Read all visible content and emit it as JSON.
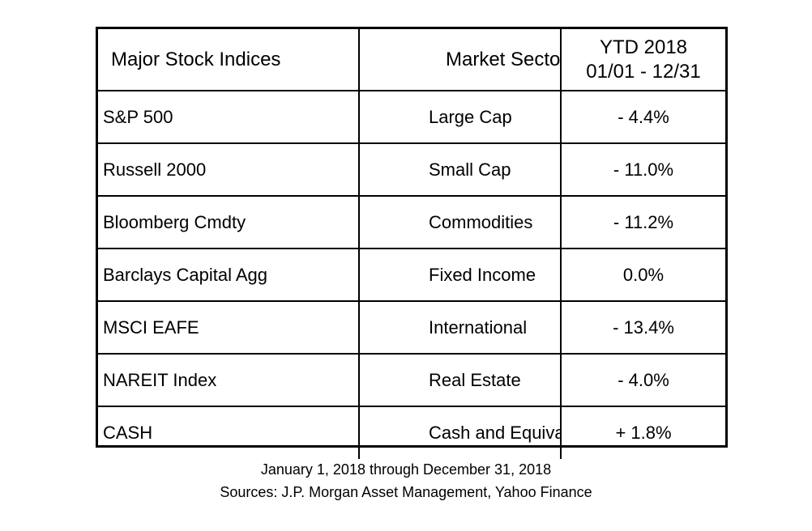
{
  "table": {
    "headers": {
      "index": "Major Stock Indices",
      "sector": "Market Sector",
      "ytd_line1": "YTD 2018",
      "ytd_line2": "01/01 - 12/31"
    },
    "rows": [
      {
        "index": "S&P 500",
        "sector": "Large Cap",
        "ytd": "- 4.4%"
      },
      {
        "index": "Russell 2000",
        "sector": "Small Cap",
        "ytd": "- 11.0%"
      },
      {
        "index": "Bloomberg Cmdty",
        "sector": "Commodities",
        "ytd": "- 11.2%"
      },
      {
        "index": "Barclays Capital Agg",
        "sector": "Fixed Income",
        "ytd": "0.0%"
      },
      {
        "index": "MSCI EAFE",
        "sector": "International",
        "ytd": "- 13.4%"
      },
      {
        "index": "NAREIT Index",
        "sector": "Real Estate",
        "ytd": "- 4.0%"
      },
      {
        "index": "CASH",
        "sector": "Cash and Equivalent",
        "ytd": "+ 1.8%"
      }
    ]
  },
  "footer": {
    "date_range": "January 1, 2018 through December 31, 2018",
    "sources": "Sources: J.P. Morgan Asset Management, Yahoo Finance"
  }
}
